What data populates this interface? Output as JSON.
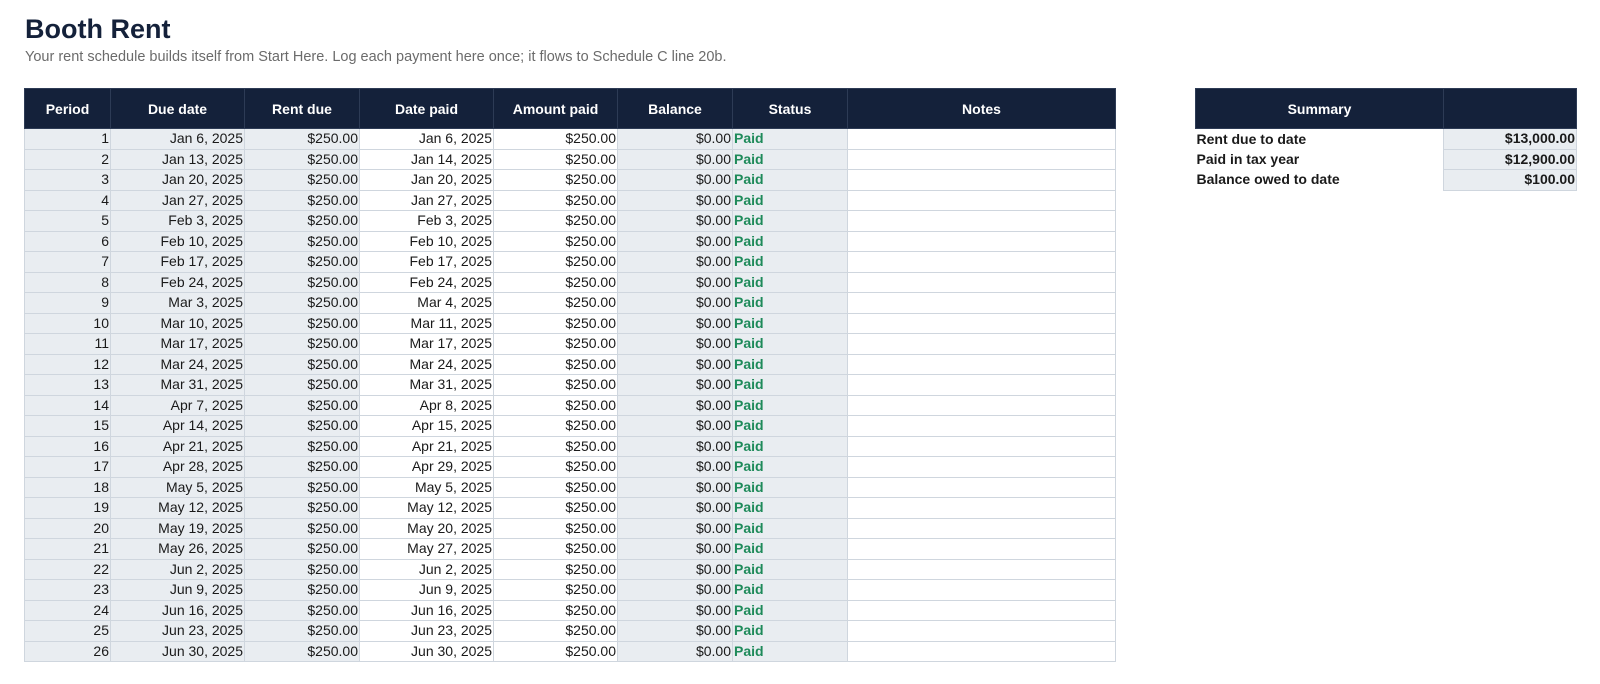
{
  "page": {
    "title": "Booth Rent",
    "subtitle": "Your rent schedule builds itself from Start Here. Log each payment here once; it flows to Schedule C line 20b."
  },
  "colors": {
    "header_bg": "#14213a",
    "header_text": "#ffffff",
    "cell_shade": "#e9edf1",
    "status_paid": "#1e8a5a"
  },
  "rent_table": {
    "headers": [
      "Period",
      "Due date",
      "Rent due",
      "Date paid",
      "Amount paid",
      "Balance",
      "Status",
      "Notes"
    ],
    "rows": [
      {
        "period": "1",
        "due_date": "Jan 6, 2025",
        "rent_due": "$250.00",
        "date_paid": "Jan 6, 2025",
        "amount_paid": "$250.00",
        "balance": "$0.00",
        "status": "Paid",
        "notes": ""
      },
      {
        "period": "2",
        "due_date": "Jan 13, 2025",
        "rent_due": "$250.00",
        "date_paid": "Jan 14, 2025",
        "amount_paid": "$250.00",
        "balance": "$0.00",
        "status": "Paid",
        "notes": ""
      },
      {
        "period": "3",
        "due_date": "Jan 20, 2025",
        "rent_due": "$250.00",
        "date_paid": "Jan 20, 2025",
        "amount_paid": "$250.00",
        "balance": "$0.00",
        "status": "Paid",
        "notes": ""
      },
      {
        "period": "4",
        "due_date": "Jan 27, 2025",
        "rent_due": "$250.00",
        "date_paid": "Jan 27, 2025",
        "amount_paid": "$250.00",
        "balance": "$0.00",
        "status": "Paid",
        "notes": ""
      },
      {
        "period": "5",
        "due_date": "Feb 3, 2025",
        "rent_due": "$250.00",
        "date_paid": "Feb 3, 2025",
        "amount_paid": "$250.00",
        "balance": "$0.00",
        "status": "Paid",
        "notes": ""
      },
      {
        "period": "6",
        "due_date": "Feb 10, 2025",
        "rent_due": "$250.00",
        "date_paid": "Feb 10, 2025",
        "amount_paid": "$250.00",
        "balance": "$0.00",
        "status": "Paid",
        "notes": ""
      },
      {
        "period": "7",
        "due_date": "Feb 17, 2025",
        "rent_due": "$250.00",
        "date_paid": "Feb 17, 2025",
        "amount_paid": "$250.00",
        "balance": "$0.00",
        "status": "Paid",
        "notes": ""
      },
      {
        "period": "8",
        "due_date": "Feb 24, 2025",
        "rent_due": "$250.00",
        "date_paid": "Feb 24, 2025",
        "amount_paid": "$250.00",
        "balance": "$0.00",
        "status": "Paid",
        "notes": ""
      },
      {
        "period": "9",
        "due_date": "Mar 3, 2025",
        "rent_due": "$250.00",
        "date_paid": "Mar 4, 2025",
        "amount_paid": "$250.00",
        "balance": "$0.00",
        "status": "Paid",
        "notes": ""
      },
      {
        "period": "10",
        "due_date": "Mar 10, 2025",
        "rent_due": "$250.00",
        "date_paid": "Mar 11, 2025",
        "amount_paid": "$250.00",
        "balance": "$0.00",
        "status": "Paid",
        "notes": ""
      },
      {
        "period": "11",
        "due_date": "Mar 17, 2025",
        "rent_due": "$250.00",
        "date_paid": "Mar 17, 2025",
        "amount_paid": "$250.00",
        "balance": "$0.00",
        "status": "Paid",
        "notes": ""
      },
      {
        "period": "12",
        "due_date": "Mar 24, 2025",
        "rent_due": "$250.00",
        "date_paid": "Mar 24, 2025",
        "amount_paid": "$250.00",
        "balance": "$0.00",
        "status": "Paid",
        "notes": ""
      },
      {
        "period": "13",
        "due_date": "Mar 31, 2025",
        "rent_due": "$250.00",
        "date_paid": "Mar 31, 2025",
        "amount_paid": "$250.00",
        "balance": "$0.00",
        "status": "Paid",
        "notes": ""
      },
      {
        "period": "14",
        "due_date": "Apr 7, 2025",
        "rent_due": "$250.00",
        "date_paid": "Apr 8, 2025",
        "amount_paid": "$250.00",
        "balance": "$0.00",
        "status": "Paid",
        "notes": ""
      },
      {
        "period": "15",
        "due_date": "Apr 14, 2025",
        "rent_due": "$250.00",
        "date_paid": "Apr 15, 2025",
        "amount_paid": "$250.00",
        "balance": "$0.00",
        "status": "Paid",
        "notes": ""
      },
      {
        "period": "16",
        "due_date": "Apr 21, 2025",
        "rent_due": "$250.00",
        "date_paid": "Apr 21, 2025",
        "amount_paid": "$250.00",
        "balance": "$0.00",
        "status": "Paid",
        "notes": ""
      },
      {
        "period": "17",
        "due_date": "Apr 28, 2025",
        "rent_due": "$250.00",
        "date_paid": "Apr 29, 2025",
        "amount_paid": "$250.00",
        "balance": "$0.00",
        "status": "Paid",
        "notes": ""
      },
      {
        "period": "18",
        "due_date": "May 5, 2025",
        "rent_due": "$250.00",
        "date_paid": "May 5, 2025",
        "amount_paid": "$250.00",
        "balance": "$0.00",
        "status": "Paid",
        "notes": ""
      },
      {
        "period": "19",
        "due_date": "May 12, 2025",
        "rent_due": "$250.00",
        "date_paid": "May 12, 2025",
        "amount_paid": "$250.00",
        "balance": "$0.00",
        "status": "Paid",
        "notes": ""
      },
      {
        "period": "20",
        "due_date": "May 19, 2025",
        "rent_due": "$250.00",
        "date_paid": "May 20, 2025",
        "amount_paid": "$250.00",
        "balance": "$0.00",
        "status": "Paid",
        "notes": ""
      },
      {
        "period": "21",
        "due_date": "May 26, 2025",
        "rent_due": "$250.00",
        "date_paid": "May 27, 2025",
        "amount_paid": "$250.00",
        "balance": "$0.00",
        "status": "Paid",
        "notes": ""
      },
      {
        "period": "22",
        "due_date": "Jun 2, 2025",
        "rent_due": "$250.00",
        "date_paid": "Jun 2, 2025",
        "amount_paid": "$250.00",
        "balance": "$0.00",
        "status": "Paid",
        "notes": ""
      },
      {
        "period": "23",
        "due_date": "Jun 9, 2025",
        "rent_due": "$250.00",
        "date_paid": "Jun 9, 2025",
        "amount_paid": "$250.00",
        "balance": "$0.00",
        "status": "Paid",
        "notes": ""
      },
      {
        "period": "24",
        "due_date": "Jun 16, 2025",
        "rent_due": "$250.00",
        "date_paid": "Jun 16, 2025",
        "amount_paid": "$250.00",
        "balance": "$0.00",
        "status": "Paid",
        "notes": ""
      },
      {
        "period": "25",
        "due_date": "Jun 23, 2025",
        "rent_due": "$250.00",
        "date_paid": "Jun 23, 2025",
        "amount_paid": "$250.00",
        "balance": "$0.00",
        "status": "Paid",
        "notes": ""
      },
      {
        "period": "26",
        "due_date": "Jun 30, 2025",
        "rent_due": "$250.00",
        "date_paid": "Jun 30, 2025",
        "amount_paid": "$250.00",
        "balance": "$0.00",
        "status": "Paid",
        "notes": ""
      }
    ]
  },
  "summary_table": {
    "headers": [
      "Summary",
      ""
    ],
    "rows": [
      {
        "label": "Rent due to date",
        "value": "$13,000.00"
      },
      {
        "label": "Paid in tax year",
        "value": "$12,900.00"
      },
      {
        "label": "Balance owed to date",
        "value": "$100.00"
      }
    ]
  }
}
